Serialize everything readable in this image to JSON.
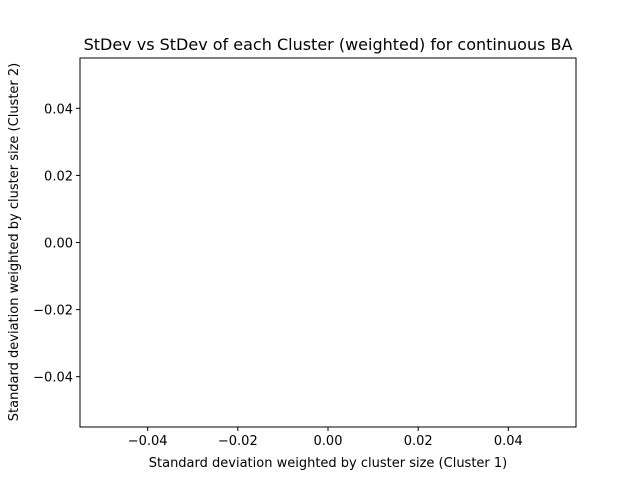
{
  "chart_data": {
    "type": "scatter",
    "title": "StDev vs StDev of each Cluster (weighted) for continuous BA",
    "xlabel": "Standard deviation weighted by cluster size (Cluster 1)",
    "ylabel": "Standard deviation weighted by cluster size (Cluster 2)",
    "xlim": [
      -0.055,
      0.055
    ],
    "ylim": [
      -0.055,
      0.055
    ],
    "xticks": [
      -0.04,
      -0.02,
      0.0,
      0.02,
      0.04
    ],
    "yticks": [
      -0.04,
      -0.02,
      0.0,
      0.02,
      0.04
    ],
    "xtick_labels": [
      "−0.04",
      "−0.02",
      "0.00",
      "0.02",
      "0.04"
    ],
    "ytick_labels": [
      "−0.04",
      "−0.02",
      "0.00",
      "0.02",
      "0.04"
    ],
    "grid": false,
    "series": [
      {
        "x": [],
        "y": []
      }
    ]
  }
}
